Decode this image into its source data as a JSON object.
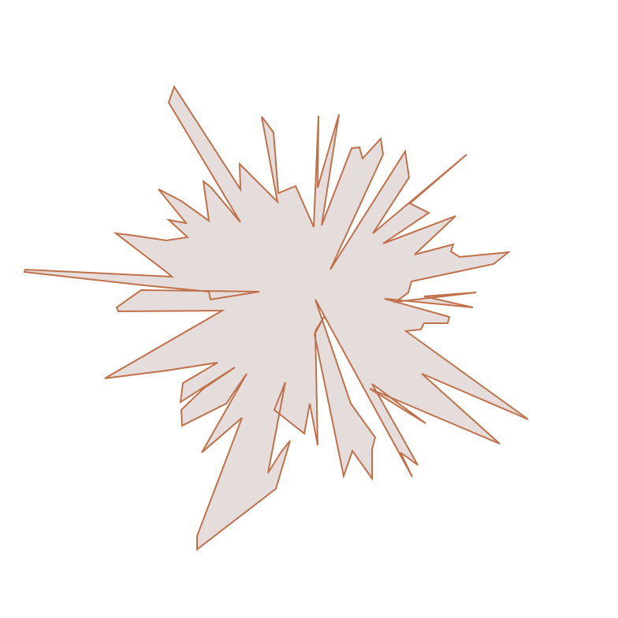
{
  "shape": {
    "kind": "jagged-star-polygon",
    "fill_color": "#e5dcdc",
    "stroke_color": "#c0714a"
  }
}
